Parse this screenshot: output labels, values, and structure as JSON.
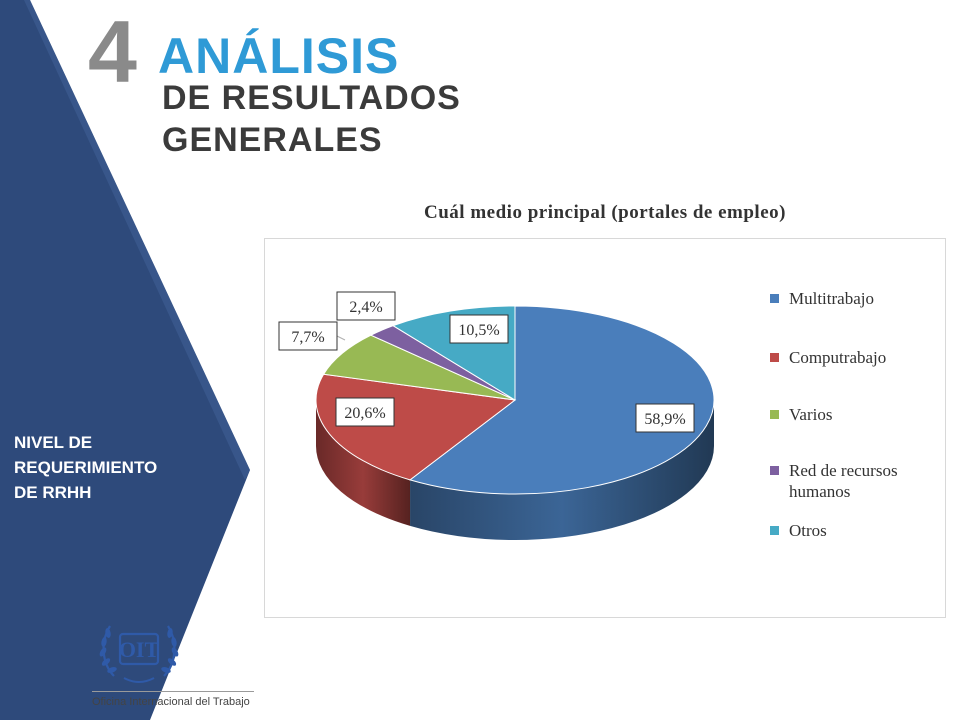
{
  "header": {
    "section_number": "4",
    "title": "ANÁLISIS",
    "subtitle_line1": "DE RESULTADOS",
    "subtitle_line2": "GENERALES"
  },
  "sidebar": {
    "label_lines": [
      "NIVEL DE",
      "REQUERIMIENTO",
      "DE RRHH"
    ]
  },
  "logo": {
    "emblem_text": "OIT",
    "caption": "Oficina Internacional del Trabajo"
  },
  "colors": {
    "sidebar_dark": "#2e4a7b",
    "title_accent": "#2f9ad6",
    "number_gray": "#8a8a8a"
  },
  "chart_data": {
    "type": "pie",
    "style": "3d",
    "title": "Cuál medio principal (portales de empleo)",
    "legend_position": "right",
    "slices": [
      {
        "name": "Multitrabajo",
        "value": 58.9,
        "label": "58,9%",
        "color": "#4a7ebb"
      },
      {
        "name": "Computrabajo",
        "value": 20.6,
        "label": "20,6%",
        "color": "#be4b48"
      },
      {
        "name": "Varios",
        "value": 7.7,
        "label": "7,7%",
        "color": "#98b954"
      },
      {
        "name": "Red de recursos humanos",
        "value": 2.4,
        "label": "2,4%",
        "color": "#7d60a0"
      },
      {
        "name": "Otros",
        "value": 10.5,
        "label": "10,5%",
        "color": "#46aac5"
      }
    ]
  }
}
